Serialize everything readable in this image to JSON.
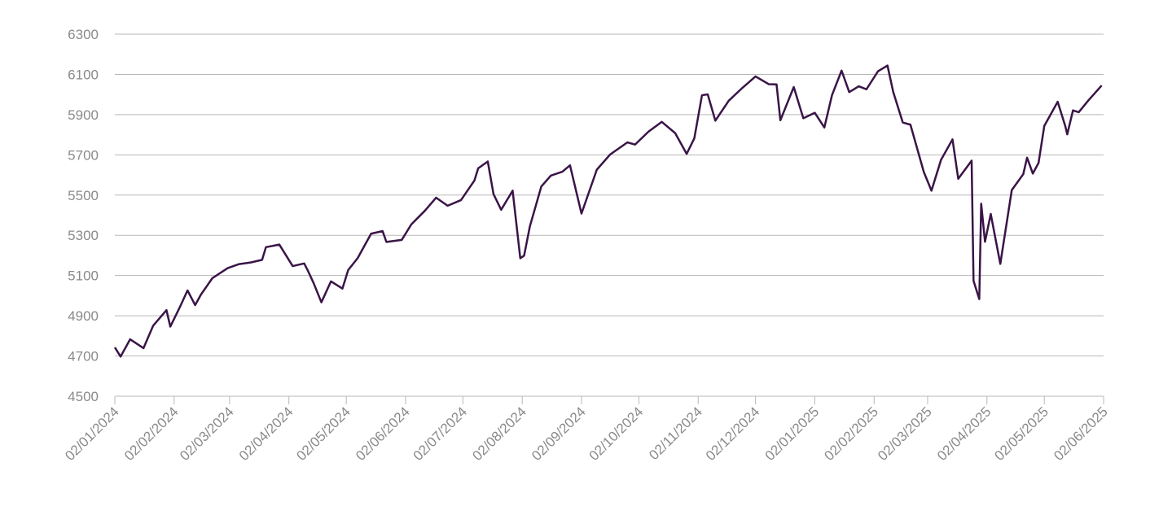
{
  "chart_data": {
    "type": "line",
    "x": [
      "2024-01-02",
      "2024-01-05",
      "2024-01-10",
      "2024-01-17",
      "2024-01-22",
      "2024-01-29",
      "2024-01-31",
      "2024-02-05",
      "2024-02-09",
      "2024-02-13",
      "2024-02-16",
      "2024-02-22",
      "2024-03-01",
      "2024-03-07",
      "2024-03-13",
      "2024-03-19",
      "2024-03-21",
      "2024-03-28",
      "2024-04-04",
      "2024-04-10",
      "2024-04-12",
      "2024-04-15",
      "2024-04-19",
      "2024-04-24",
      "2024-04-30",
      "2024-05-03",
      "2024-05-08",
      "2024-05-15",
      "2024-05-21",
      "2024-05-23",
      "2024-05-31",
      "2024-06-05",
      "2024-06-12",
      "2024-06-18",
      "2024-06-24",
      "2024-07-01",
      "2024-07-08",
      "2024-07-10",
      "2024-07-15",
      "2024-07-18",
      "2024-07-22",
      "2024-07-28",
      "2024-08-01",
      "2024-08-03",
      "2024-08-06",
      "2024-08-12",
      "2024-08-17",
      "2024-08-23",
      "2024-08-27",
      "2024-08-30",
      "2024-09-02",
      "2024-09-10",
      "2024-09-17",
      "2024-09-26",
      "2024-09-30",
      "2024-10-07",
      "2024-10-14",
      "2024-10-21",
      "2024-10-27",
      "2024-10-31",
      "2024-11-04",
      "2024-11-07",
      "2024-11-11",
      "2024-11-18",
      "2024-11-25",
      "2024-12-02",
      "2024-12-09",
      "2024-12-13",
      "2024-12-15",
      "2024-12-22",
      "2024-12-27",
      "2025-01-02",
      "2025-01-07",
      "2025-01-11",
      "2025-01-16",
      "2025-01-20",
      "2025-01-25",
      "2025-01-29",
      "2025-02-04",
      "2025-02-09",
      "2025-02-12",
      "2025-02-17",
      "2025-02-21",
      "2025-02-28",
      "2025-03-04",
      "2025-03-09",
      "2025-03-15",
      "2025-03-18",
      "2025-03-25",
      "2025-03-26",
      "2025-03-29",
      "2025-03-30",
      "2025-04-01",
      "2025-04-04",
      "2025-04-09",
      "2025-04-15",
      "2025-04-21",
      "2025-04-23",
      "2025-04-26",
      "2025-04-29",
      "2025-05-02",
      "2025-05-09",
      "2025-05-13",
      "2025-05-14",
      "2025-05-17",
      "2025-05-20",
      "2025-05-25",
      "2025-06-01"
    ],
    "series": [
      {
        "color": "#3a1447",
        "values": [
          4743,
          4697,
          4783,
          4739,
          4850,
          4928,
          4846,
          4943,
          5026,
          4953,
          5005,
          5087,
          5137,
          5157,
          5165,
          5178,
          5241,
          5254,
          5147,
          5160,
          5123,
          5061,
          4967,
          5071,
          5035,
          5127,
          5187,
          5308,
          5321,
          5267,
          5277,
          5354,
          5421,
          5487,
          5447,
          5475,
          5572,
          5633,
          5667,
          5505,
          5427,
          5522,
          5186,
          5199,
          5344,
          5543,
          5597,
          5616,
          5648,
          5528,
          5408,
          5626,
          5702,
          5762,
          5751,
          5815,
          5864,
          5808,
          5705,
          5782,
          5996,
          6001,
          5870,
          5969,
          6032,
          6090,
          6051,
          6050,
          5872,
          6037,
          5882,
          5909,
          5836,
          5997,
          6119,
          6012,
          6041,
          6026,
          6115,
          6144,
          6013,
          5861,
          5850,
          5615,
          5522,
          5675,
          5777,
          5581,
          5671,
          5074,
          4983,
          5457,
          5268,
          5406,
          5158,
          5525,
          5604,
          5686,
          5607,
          5660,
          5844,
          5964,
          5842,
          5802,
          5921,
          5912,
          5970,
          6045
        ]
      }
    ],
    "xlim": [
      "2024-01-02",
      "2025-06-02"
    ],
    "xticks": [
      {
        "value": "2024-01-02",
        "label": "02/01/2024"
      },
      {
        "value": "2024-02-02",
        "label": "02/02/2024"
      },
      {
        "value": "2024-03-02",
        "label": "02/03/2024"
      },
      {
        "value": "2024-04-02",
        "label": "02/04/2024"
      },
      {
        "value": "2024-05-02",
        "label": "02/05/2024"
      },
      {
        "value": "2024-06-02",
        "label": "02/06/2024"
      },
      {
        "value": "2024-07-02",
        "label": "02/07/2024"
      },
      {
        "value": "2024-08-02",
        "label": "02/08/2024"
      },
      {
        "value": "2024-09-02",
        "label": "02/09/2024"
      },
      {
        "value": "2024-10-02",
        "label": "02/10/2024"
      },
      {
        "value": "2024-11-02",
        "label": "02/11/2024"
      },
      {
        "value": "2024-12-02",
        "label": "02/12/2024"
      },
      {
        "value": "2025-01-02",
        "label": "02/01/2025"
      },
      {
        "value": "2025-02-02",
        "label": "02/02/2025"
      },
      {
        "value": "2025-03-02",
        "label": "02/03/2025"
      },
      {
        "value": "2025-04-02",
        "label": "02/04/2025"
      },
      {
        "value": "2025-05-02",
        "label": "02/05/2025"
      },
      {
        "value": "2025-06-02",
        "label": "02/06/2025"
      }
    ],
    "ylim": [
      4500,
      6300
    ],
    "yticks": [
      4500,
      4700,
      4900,
      5100,
      5300,
      5500,
      5700,
      5900,
      6100,
      6300
    ],
    "grid": true
  }
}
